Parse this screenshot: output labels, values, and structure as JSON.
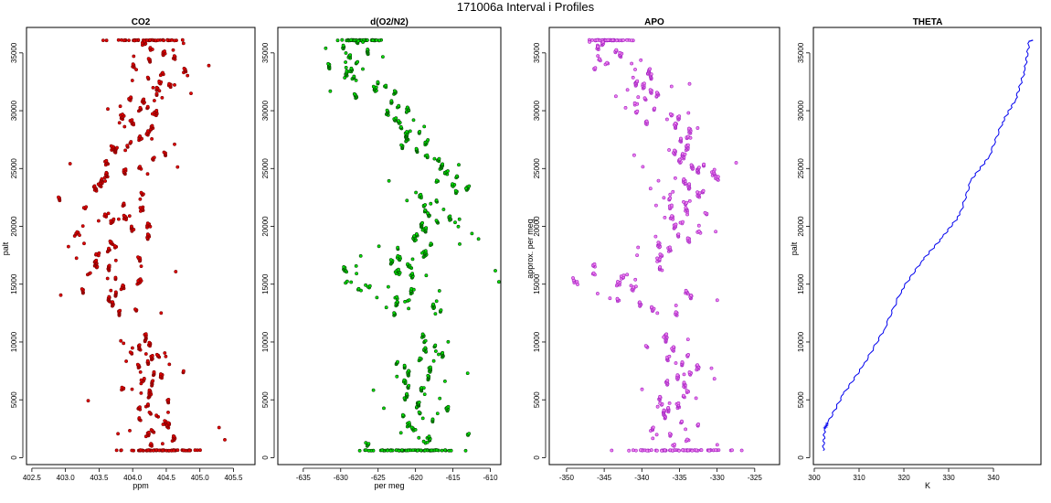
{
  "figure_title": "171006a   Interval i Profiles",
  "chart_data": [
    {
      "type": "scatter",
      "title": "CO2",
      "xlabel": "ppm",
      "ylabel": "palt",
      "xlim": [
        402.42,
        405.82
      ],
      "ylim": [
        -600,
        37200
      ],
      "xticks": [
        "402.5",
        "403.0",
        "403.5",
        "404.0",
        "404.5",
        "405.0",
        "405.5"
      ],
      "yticks": [
        "0",
        "5000",
        "10000",
        "15000",
        "20000",
        "25000",
        "30000",
        "35000"
      ],
      "point_color": "#e00000",
      "edge_color": "#7a0000",
      "profile": {
        "pressure": [
          600,
          3000,
          6000,
          9000,
          12000,
          13500,
          15000,
          17500,
          20000,
          22500,
          25000,
          27500,
          30000,
          32500,
          34500,
          36100
        ],
        "center": [
          404.45,
          404.3,
          404.25,
          404.2,
          403.85,
          403.6,
          403.7,
          403.8,
          403.8,
          403.8,
          404.0,
          403.95,
          404.1,
          404.3,
          404.35,
          404.2
        ],
        "spread": [
          0.55,
          0.3,
          0.35,
          0.35,
          0.25,
          0.3,
          0.45,
          0.45,
          0.45,
          0.5,
          0.45,
          0.4,
          0.35,
          0.35,
          0.3,
          0.5
        ]
      },
      "gap": [
        10400,
        12300
      ]
    },
    {
      "type": "scatter",
      "title": "d(O2/N2)",
      "xlabel": "per meg",
      "ylabel": "",
      "xlim": [
        -638.4,
        -608.6
      ],
      "ylim": [
        -600,
        37200
      ],
      "xticks": [
        "-635",
        "-630",
        "-625",
        "-620",
        "-615",
        "-610"
      ],
      "yticks": [
        "0",
        "5000",
        "10000",
        "15000",
        "20000",
        "25000",
        "30000",
        "35000"
      ],
      "point_color": "#00e000",
      "edge_color": "#004400",
      "profile": {
        "pressure": [
          600,
          3000,
          6000,
          9000,
          12000,
          13500,
          15000,
          17500,
          20000,
          22500,
          25000,
          27500,
          30000,
          32500,
          34500,
          36100
        ],
        "center": [
          -620,
          -620.5,
          -619.5,
          -619,
          -619,
          -622,
          -626,
          -621.5,
          -618,
          -617,
          -617,
          -619,
          -623,
          -627,
          -630,
          -627
        ],
        "spread": [
          6,
          4,
          3,
          3,
          3.5,
          4,
          7,
          4,
          3,
          3,
          3.5,
          3,
          3,
          3,
          3,
          3
        ]
      },
      "gap": [
        10400,
        12300
      ]
    },
    {
      "type": "scatter",
      "title": "APO",
      "xlabel": "",
      "ylabel": "approx. per meg",
      "xlim": [
        -352.3,
        -321.7
      ],
      "ylim": [
        -600,
        37200
      ],
      "xticks": [
        "-350",
        "-345",
        "-340",
        "-335",
        "-330",
        "-325"
      ],
      "yticks": [
        "0",
        "5000",
        "10000",
        "15000",
        "20000",
        "25000",
        "30000",
        "35000"
      ],
      "point_color": "#ee80ee",
      "edge_color": "#a020c0",
      "profile": {
        "pressure": [
          600,
          3000,
          6000,
          9000,
          12000,
          13500,
          15000,
          17500,
          20000,
          22500,
          25000,
          27500,
          30000,
          32500,
          34500,
          36100
        ],
        "center": [
          -334,
          -335.5,
          -335,
          -336,
          -337,
          -339,
          -342,
          -338,
          -335,
          -334,
          -333,
          -335,
          -338,
          -341,
          -344,
          -344
        ],
        "spread": [
          6,
          3,
          3,
          3,
          3.5,
          4,
          7,
          4,
          3,
          3,
          3.5,
          3,
          3,
          3,
          3,
          3
        ]
      },
      "gap": [
        10400,
        12300
      ]
    },
    {
      "type": "line",
      "title": "THETA",
      "xlabel": "K",
      "ylabel": "palt",
      "xlim": [
        299.8,
        350.6
      ],
      "ylim": [
        -600,
        37200
      ],
      "xticks": [
        "300",
        "310",
        "320",
        "330",
        "340"
      ],
      "yticks": [
        "0",
        "5000",
        "10000",
        "15000",
        "20000",
        "25000",
        "30000",
        "35000"
      ],
      "line_color": "#0000ee",
      "x": [
        302.0,
        302.3,
        303.0,
        306.5,
        311.0,
        315.5,
        319.5,
        324.0,
        328.5,
        332.5,
        335.0,
        339.0,
        342.0,
        345.0,
        347.0,
        348.0,
        348.8
      ],
      "y": [
        600,
        2500,
        3000,
        5500,
        8000,
        11000,
        14500,
        17000,
        19000,
        21000,
        24000,
        26000,
        29000,
        31000,
        33500,
        36000,
        36100
      ]
    }
  ]
}
